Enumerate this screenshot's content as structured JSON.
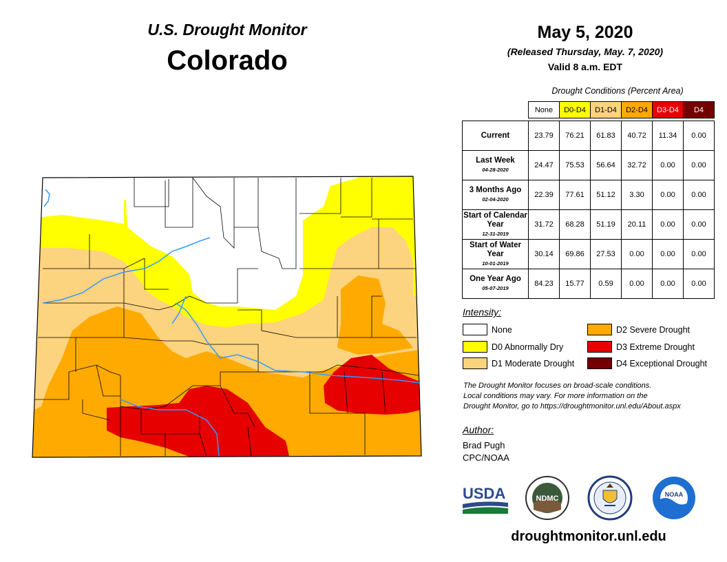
{
  "header": {
    "product": "U.S. Drought Monitor",
    "state": "Colorado"
  },
  "release": {
    "date": "May 5, 2020",
    "released": "(Released Thursday, May. 7, 2020)",
    "valid": "Valid 8 a.m. EDT"
  },
  "table": {
    "title": "Drought Conditions (Percent Area)",
    "columns": [
      "None",
      "D0-D4",
      "D1-D4",
      "D2-D4",
      "D3-D4",
      "D4"
    ],
    "rows": [
      {
        "label": "Current",
        "date": "",
        "values": [
          "23.79",
          "76.21",
          "61.83",
          "40.72",
          "11.34",
          "0.00"
        ]
      },
      {
        "label": "Last Week",
        "date": "04-28-2020",
        "values": [
          "24.47",
          "75.53",
          "56.64",
          "32.72",
          "0.00",
          "0.00"
        ]
      },
      {
        "label": "3 Months Ago",
        "date": "02-04-2020",
        "values": [
          "22.39",
          "77.61",
          "51.12",
          "3.30",
          "0.00",
          "0.00"
        ]
      },
      {
        "label": "Start of Calendar Year",
        "date": "12-31-2019",
        "values": [
          "31.72",
          "68.28",
          "51.19",
          "20.11",
          "0.00",
          "0.00"
        ]
      },
      {
        "label": "Start of Water Year",
        "date": "10-01-2019",
        "values": [
          "30.14",
          "69.86",
          "27.53",
          "0.00",
          "0.00",
          "0.00"
        ]
      },
      {
        "label": "One Year Ago",
        "date": "05-07-2019",
        "values": [
          "84.23",
          "15.77",
          "0.59",
          "0.00",
          "0.00",
          "0.00"
        ]
      }
    ]
  },
  "legend": {
    "title": "Intensity:",
    "items": [
      {
        "label": "None",
        "color": "#ffffff"
      },
      {
        "label": "D0 Abnormally Dry",
        "color": "#ffff00"
      },
      {
        "label": "D1 Moderate Drought",
        "color": "#fcd37f"
      },
      {
        "label": "D2 Severe Drought",
        "color": "#ffaa00"
      },
      {
        "label": "D3 Extreme Drought",
        "color": "#e60000"
      },
      {
        "label": "D4 Exceptional Drought",
        "color": "#730000"
      }
    ]
  },
  "note": {
    "line1": "The Drought Monitor focuses on broad-scale conditions.",
    "line2": "Local conditions may vary. For more information on the",
    "line3": "Drought Monitor, go to https://droughtmonitor.unl.edu/About.aspx"
  },
  "author": {
    "title": "Author:",
    "name": "Brad Pugh",
    "org": "CPC/NOAA"
  },
  "logos": {
    "usda": "USDA",
    "ndmc": "NDMC",
    "noaa": "NOAA"
  },
  "footer": {
    "site": "droughtmonitor.unl.edu"
  },
  "map": {
    "river_color": "#3399ff",
    "border_color": "#000000"
  }
}
